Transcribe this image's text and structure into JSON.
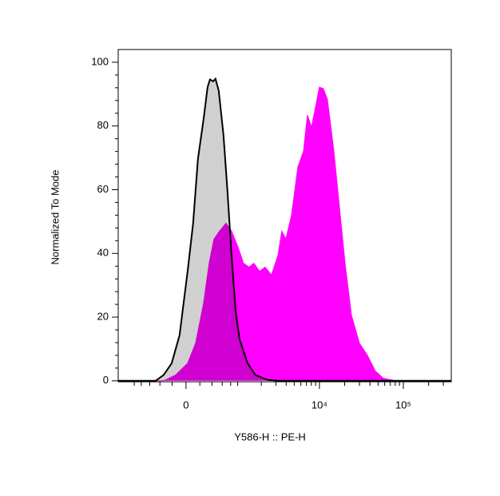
{
  "chart_data": {
    "type": "histogram-overlay",
    "xlabel": "Y586-H :: PE-H",
    "ylabel": "Normalized To Mode",
    "xscale": "biexponential",
    "xlim": [
      -1610,
      372700
    ],
    "xticks": [
      0,
      {
        "value": 10000,
        "label": "10⁴"
      },
      {
        "value": 100000,
        "label": "10⁵"
      }
    ],
    "ylim": [
      -0.3,
      104
    ],
    "yticks": [
      0,
      20,
      40,
      60,
      80,
      100
    ],
    "series": [
      {
        "color": "#ff00ff",
        "x": [
          -1610,
          -336,
          -149,
          23,
          137,
          258,
          349,
          435,
          544,
          683,
          823,
          1009,
          1190,
          1407,
          1615,
          1899,
          2221,
          2657,
          3182,
          3552,
          3968,
          4636,
          5526,
          6451,
          7196,
          8034,
          8969,
          10000,
          11154,
          12439,
          14855,
          17322,
          20200,
          24055,
          29966,
          37316,
          46466,
          57876,
          80338,
          372700
        ],
        "values": [
          0,
          0,
          1.8,
          5.5,
          11.8,
          24.4,
          36.9,
          44.5,
          47,
          49.5,
          47,
          42,
          36.9,
          35.7,
          36.9,
          34.4,
          35.7,
          33.2,
          39.4,
          47,
          44.5,
          52,
          67.1,
          72.1,
          83.4,
          79.6,
          85.9,
          92.2,
          91.7,
          88.4,
          72.1,
          54.5,
          36.9,
          20.6,
          11.8,
          8,
          3,
          0.8,
          0,
          0
        ]
      },
      {
        "color": "#c8c8c8",
        "x": [
          -1610,
          -480,
          -336,
          -208,
          -91,
          23,
          102,
          172,
          258,
          323,
          363,
          420,
          464,
          527,
          628,
          721,
          823,
          937,
          1057,
          1346,
          1691,
          2380,
          3326,
          372700
        ],
        "values": [
          0,
          0,
          1.8,
          5.5,
          14.3,
          34.4,
          49.5,
          69.6,
          82.2,
          92.2,
          94.6,
          94,
          94.8,
          91,
          77.1,
          59.5,
          39.4,
          21.9,
          13.1,
          5.5,
          1.8,
          0.3,
          0,
          0
        ]
      }
    ]
  }
}
